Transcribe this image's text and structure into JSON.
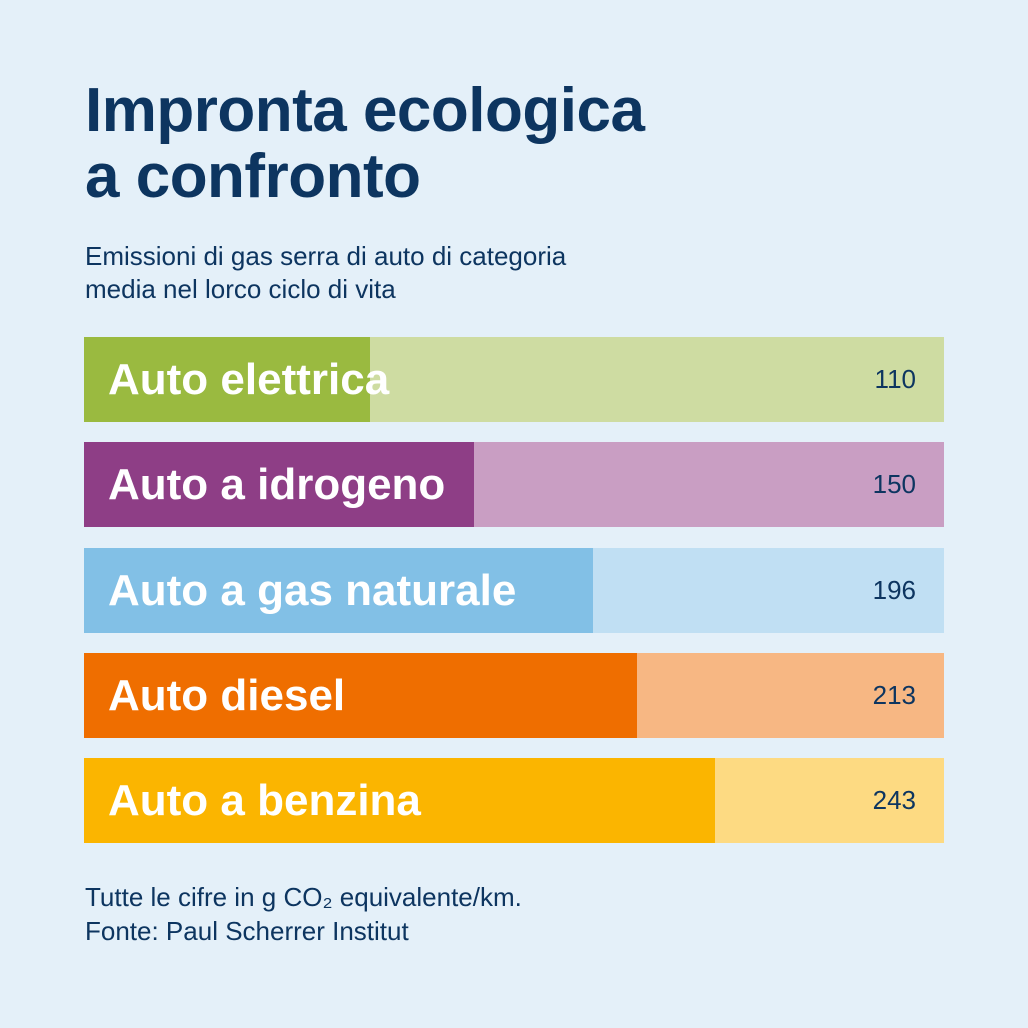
{
  "title_lines": [
    "Impronta ecologica",
    "a confronto"
  ],
  "subtitle_lines": [
    "Emissioni di gas serra di auto di categoria",
    "media nel lorco ciclo di vita"
  ],
  "chart_data": {
    "type": "bar",
    "orientation": "horizontal",
    "categories": [
      "Auto elettrica",
      "Auto a idrogeno",
      "Auto a gas naturale",
      "Auto diesel",
      "Auto a benzina"
    ],
    "values": [
      110,
      150,
      196,
      213,
      243
    ],
    "value_labels": [
      "110",
      "150",
      "196",
      "213",
      "243"
    ],
    "colors": [
      "#9aba40",
      "#8e3e86",
      "#82c0e6",
      "#ef6e00",
      "#fbb500"
    ],
    "background_colors": [
      "#cedca2",
      "#c99ec3",
      "#c0dff3",
      "#f7b783",
      "#fdda82"
    ],
    "grid": false
  },
  "footer_lines": [
    "Tutte le cifre in g CO₂ equivalente/km.",
    "Fonte: Paul Scherrer Institut"
  ]
}
